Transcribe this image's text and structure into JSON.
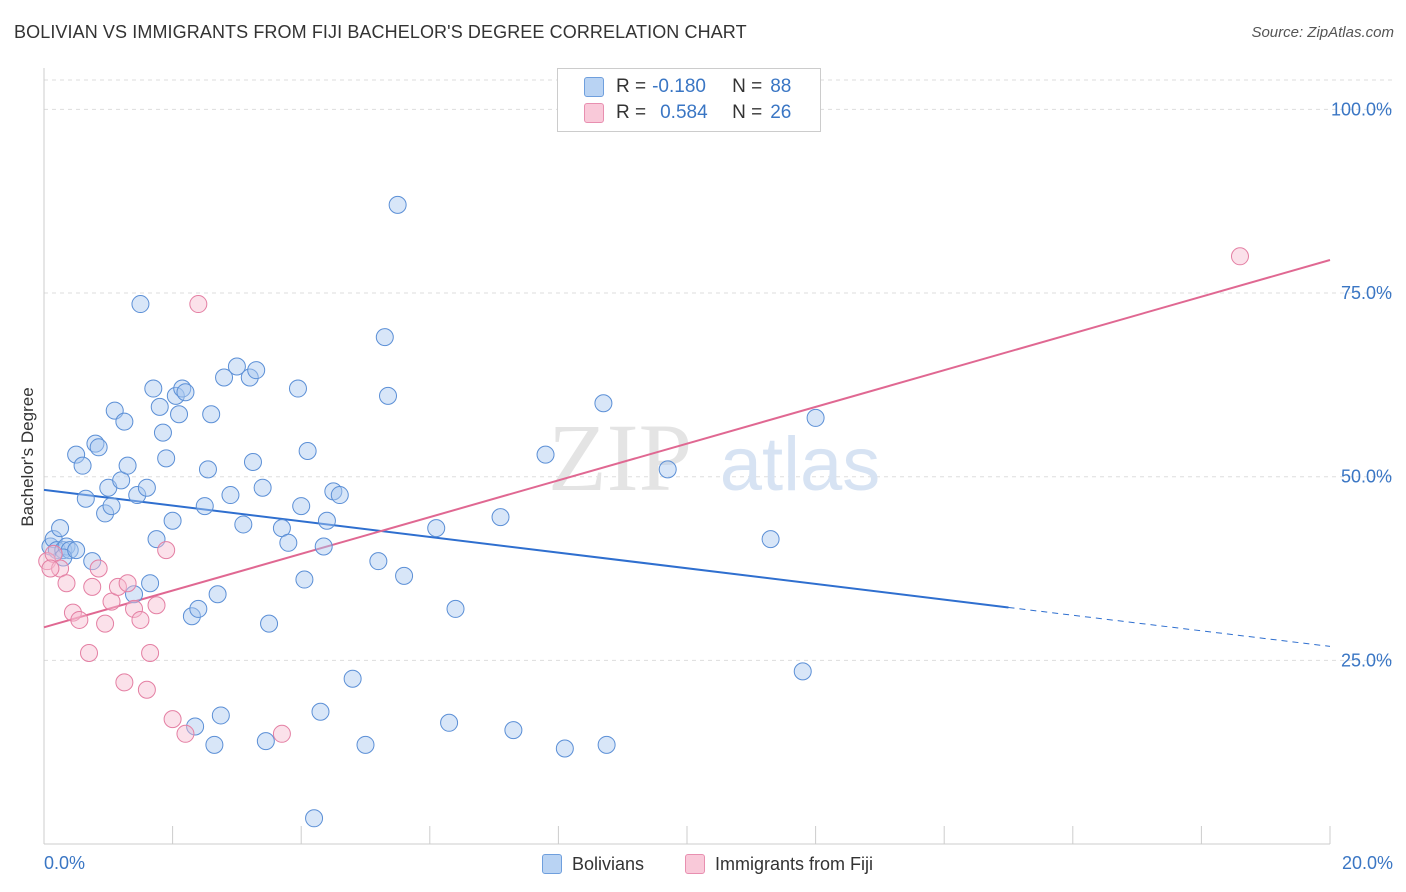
{
  "title": "BOLIVIAN VS IMMIGRANTS FROM FIJI BACHELOR'S DEGREE CORRELATION CHART",
  "source": "Source: ZipAtlas.com",
  "watermark": {
    "zip": "ZIP",
    "atlas": "atlas"
  },
  "colors": {
    "blue_fill": "#a9c8f0",
    "blue_stroke": "#5b8fd6",
    "blue_line": "#2f6fcf",
    "pink_fill": "#f6bcd0",
    "pink_stroke": "#e47fa3",
    "pink_line": "#e06892",
    "axis_text": "#3a76c4",
    "grid": "#dddddd"
  },
  "legend": {
    "rows": [
      {
        "r_label": "R =",
        "r_value": "-0.180",
        "n_label": "N =",
        "n_value": "88",
        "series": "blue"
      },
      {
        "r_label": "R =",
        "r_value": "0.584",
        "n_label": "N =",
        "n_value": "26",
        "series": "pink"
      }
    ]
  },
  "bottom_legend": [
    {
      "label": "Bolivians",
      "series": "blue"
    },
    {
      "label": "Immigrants from Fiji",
      "series": "pink"
    }
  ],
  "chart_data": {
    "type": "scatter",
    "title": "BOLIVIAN VS IMMIGRANTS FROM FIJI BACHELOR'S DEGREE CORRELATION CHART",
    "xlabel": "",
    "ylabel": "Bachelor's Degree",
    "xlim": [
      0,
      20
    ],
    "ylim": [
      0,
      104
    ],
    "x_tick_labels": [
      {
        "value": 0,
        "label": "0.0%"
      },
      {
        "value": 20,
        "label": "20.0%"
      }
    ],
    "x_minor_ticks": [
      0,
      2,
      4,
      6,
      8,
      10,
      12,
      14,
      16,
      18,
      20
    ],
    "y_tick_labels": [
      {
        "value": 25,
        "label": "25.0%"
      },
      {
        "value": 50,
        "label": "50.0%"
      },
      {
        "value": 75,
        "label": "75.0%"
      },
      {
        "value": 100,
        "label": "100.0%"
      }
    ],
    "grid": true,
    "series": [
      {
        "name": "Bolivians",
        "color": "blue",
        "r": -0.18,
        "n": 88,
        "trend": {
          "x0": 0,
          "y0": 48.2,
          "x1": 15.0,
          "y1": 32.2,
          "dash_to_x": 20,
          "dash_to_y": 26.9
        },
        "points": [
          [
            0.1,
            40.5
          ],
          [
            0.15,
            41.5
          ],
          [
            0.2,
            40.0
          ],
          [
            0.25,
            43.0
          ],
          [
            0.3,
            40.0
          ],
          [
            0.35,
            40.5
          ],
          [
            0.4,
            40.0
          ],
          [
            0.5,
            53.0
          ],
          [
            0.6,
            51.5
          ],
          [
            0.65,
            47.0
          ],
          [
            0.75,
            38.5
          ],
          [
            0.8,
            54.5
          ],
          [
            0.85,
            54.0
          ],
          [
            0.95,
            45.0
          ],
          [
            1.0,
            48.5
          ],
          [
            1.05,
            46.0
          ],
          [
            1.1,
            59.0
          ],
          [
            1.2,
            49.5
          ],
          [
            1.25,
            57.5
          ],
          [
            1.3,
            51.5
          ],
          [
            1.4,
            34.0
          ],
          [
            1.45,
            47.5
          ],
          [
            1.5,
            73.5
          ],
          [
            1.6,
            48.5
          ],
          [
            1.65,
            35.5
          ],
          [
            1.7,
            62.0
          ],
          [
            1.75,
            41.5
          ],
          [
            1.8,
            59.5
          ],
          [
            1.85,
            56.0
          ],
          [
            1.9,
            52.5
          ],
          [
            2.0,
            44.0
          ],
          [
            2.05,
            61.0
          ],
          [
            2.1,
            58.5
          ],
          [
            2.15,
            62.0
          ],
          [
            2.2,
            61.5
          ],
          [
            2.3,
            31.0
          ],
          [
            2.35,
            16.0
          ],
          [
            2.4,
            32.0
          ],
          [
            2.5,
            46.0
          ],
          [
            2.55,
            51.0
          ],
          [
            2.6,
            58.5
          ],
          [
            2.65,
            13.5
          ],
          [
            2.7,
            34.0
          ],
          [
            2.75,
            17.5
          ],
          [
            2.8,
            63.5
          ],
          [
            2.9,
            47.5
          ],
          [
            3.0,
            65.0
          ],
          [
            3.1,
            43.5
          ],
          [
            3.2,
            63.5
          ],
          [
            3.25,
            52.0
          ],
          [
            3.3,
            64.5
          ],
          [
            3.4,
            48.5
          ],
          [
            3.45,
            14.0
          ],
          [
            3.5,
            30.0
          ],
          [
            3.7,
            43.0
          ],
          [
            3.8,
            41.0
          ],
          [
            3.95,
            62.0
          ],
          [
            4.0,
            46.0
          ],
          [
            4.05,
            36.0
          ],
          [
            4.1,
            53.5
          ],
          [
            4.2,
            3.5
          ],
          [
            4.3,
            18.0
          ],
          [
            4.35,
            40.5
          ],
          [
            4.4,
            44.0
          ],
          [
            4.5,
            48.0
          ],
          [
            4.6,
            47.5
          ],
          [
            4.8,
            22.5
          ],
          [
            5.0,
            13.5
          ],
          [
            5.2,
            38.5
          ],
          [
            5.3,
            69.0
          ],
          [
            5.35,
            61.0
          ],
          [
            5.5,
            87.0
          ],
          [
            5.6,
            36.5
          ],
          [
            6.1,
            43.0
          ],
          [
            6.3,
            16.5
          ],
          [
            6.4,
            32.0
          ],
          [
            7.1,
            44.5
          ],
          [
            7.3,
            15.5
          ],
          [
            7.8,
            53.0
          ],
          [
            8.1,
            13.0
          ],
          [
            8.7,
            60.0
          ],
          [
            8.75,
            13.5
          ],
          [
            9.7,
            51.0
          ],
          [
            11.3,
            41.5
          ],
          [
            11.8,
            23.5
          ],
          [
            12.0,
            58.0
          ],
          [
            0.3,
            39.0
          ],
          [
            0.5,
            40.0
          ]
        ]
      },
      {
        "name": "Immigrants from Fiji",
        "color": "pink",
        "r": 0.584,
        "n": 26,
        "trend": {
          "x0": 0,
          "y0": 29.5,
          "x1": 20,
          "y1": 79.5
        },
        "points": [
          [
            0.05,
            38.5
          ],
          [
            0.15,
            39.5
          ],
          [
            0.25,
            37.5
          ],
          [
            0.35,
            35.5
          ],
          [
            0.45,
            31.5
          ],
          [
            0.55,
            30.5
          ],
          [
            0.7,
            26.0
          ],
          [
            0.75,
            35.0
          ],
          [
            0.85,
            37.5
          ],
          [
            0.95,
            30.0
          ],
          [
            1.05,
            33.0
          ],
          [
            1.15,
            35.0
          ],
          [
            1.25,
            22.0
          ],
          [
            1.3,
            35.5
          ],
          [
            1.4,
            32.0
          ],
          [
            1.5,
            30.5
          ],
          [
            1.6,
            21.0
          ],
          [
            1.65,
            26.0
          ],
          [
            1.75,
            32.5
          ],
          [
            1.9,
            40.0
          ],
          [
            2.0,
            17.0
          ],
          [
            2.2,
            15.0
          ],
          [
            2.4,
            73.5
          ],
          [
            3.7,
            15.0
          ],
          [
            18.6,
            80.0
          ],
          [
            0.1,
            37.5
          ]
        ]
      }
    ]
  }
}
